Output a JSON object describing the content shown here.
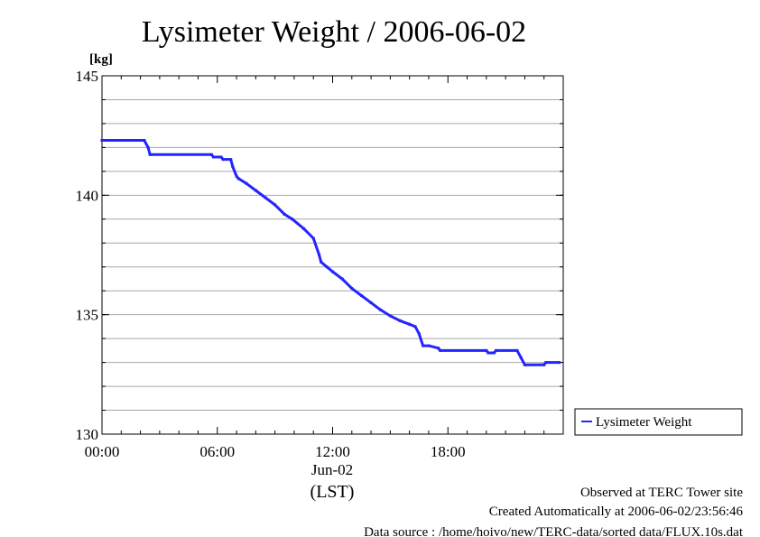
{
  "chart_data": {
    "type": "line",
    "title": "Lysimeter Weight / 2006-06-02",
    "ylabel_unit": "[kg]",
    "xlabel_date": "Jun-02",
    "xlabel_tz": "(LST)",
    "x_tick_labels": [
      "00:00",
      "06:00",
      "12:00",
      "18:00"
    ],
    "x_range_hours": [
      0,
      24
    ],
    "ylim": [
      130,
      145
    ],
    "y_tick_labels": [
      "130",
      "135",
      "140",
      "145"
    ],
    "grid": true,
    "legend_placement": "right-bottom",
    "series": [
      {
        "name": "Lysimeter Weight",
        "color": "#2424ff",
        "x": [
          0.0,
          2.2,
          2.4,
          2.5,
          5.7,
          5.8,
          6.2,
          6.3,
          6.7,
          6.8,
          7.0,
          7.1,
          7.5,
          8.0,
          8.5,
          9.0,
          9.5,
          9.9,
          10.5,
          11.0,
          11.3,
          11.4,
          11.7,
          12.0,
          12.5,
          13.0,
          13.5,
          14.0,
          14.5,
          15.0,
          15.5,
          16.0,
          16.3,
          16.5,
          16.7,
          17.0,
          17.5,
          17.6,
          20.0,
          20.1,
          20.4,
          20.5,
          21.6,
          21.8,
          22.0,
          23.0,
          23.1,
          23.8
        ],
        "values": [
          142.3,
          142.3,
          142.0,
          141.7,
          141.7,
          141.6,
          141.6,
          141.5,
          141.5,
          141.2,
          140.8,
          140.7,
          140.5,
          140.2,
          139.9,
          139.6,
          139.2,
          139.0,
          138.6,
          138.2,
          137.5,
          137.2,
          137.0,
          136.8,
          136.5,
          136.1,
          135.8,
          135.5,
          135.2,
          134.95,
          134.75,
          134.6,
          134.5,
          134.2,
          133.7,
          133.7,
          133.6,
          133.5,
          133.5,
          133.4,
          133.4,
          133.5,
          133.5,
          133.2,
          132.9,
          132.9,
          133.0,
          133.0
        ]
      }
    ]
  },
  "footer": {
    "line1": "Observed at TERC Tower site",
    "line2": "Created Automatically at 2006-06-02/23:56:46",
    "line3": "Data source : /home/hoivo/new/TERC-data/sorted  data/FLUX.10s.dat"
  }
}
